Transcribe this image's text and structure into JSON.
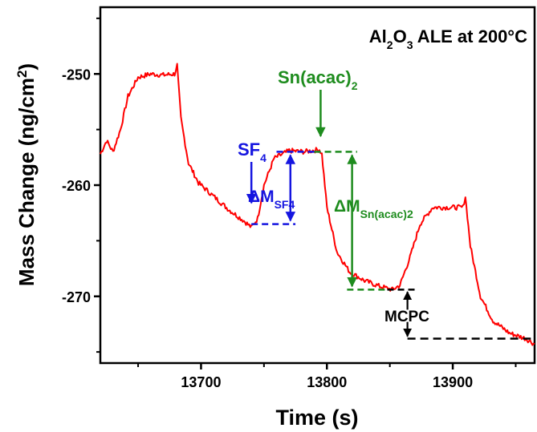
{
  "chart_data": {
    "type": "line",
    "title": "",
    "xlabel": "Time (s)",
    "ylabel_main": "Mass Change (ng/cm",
    "ylabel_sup": "2",
    "ylabel_close": ")",
    "xlim": [
      13620,
      13965
    ],
    "ylim": [
      -276,
      -244
    ],
    "xticks": [
      13700,
      13800,
      13900
    ],
    "xtick_labels": [
      "13700",
      "13800",
      "13900"
    ],
    "yticks": [
      -250,
      -260,
      -270
    ],
    "ytick_labels": [
      "-250",
      "-260",
      "-270"
    ],
    "grid": false,
    "legend": "none",
    "line_color": "#ff0000",
    "series": [
      {
        "values_xy": [
          [
            13620,
            -257.2
          ],
          [
            13625,
            -256.0
          ],
          [
            13630,
            -257.0
          ],
          [
            13636,
            -255.0
          ],
          [
            13642,
            -252.0
          ],
          [
            13650,
            -250.3
          ],
          [
            13660,
            -250.0
          ],
          [
            13670,
            -250.1
          ],
          [
            13679,
            -250.0
          ],
          [
            13681,
            -249.2
          ],
          [
            13684,
            -254.0
          ],
          [
            13690,
            -258.0
          ],
          [
            13698,
            -259.8
          ],
          [
            13710,
            -261.0
          ],
          [
            13722,
            -262.2
          ],
          [
            13734,
            -263.2
          ],
          [
            13740,
            -263.8
          ],
          [
            13745,
            -263.0
          ],
          [
            13750,
            -260.0
          ],
          [
            13758,
            -257.6
          ],
          [
            13770,
            -256.9
          ],
          [
            13782,
            -257.0
          ],
          [
            13794,
            -256.8
          ],
          [
            13796,
            -257.2
          ],
          [
            13800,
            -262.0
          ],
          [
            13808,
            -266.0
          ],
          [
            13818,
            -267.8
          ],
          [
            13830,
            -268.6
          ],
          [
            13842,
            -269.1
          ],
          [
            13852,
            -269.4
          ],
          [
            13858,
            -269.0
          ],
          [
            13866,
            -266.5
          ],
          [
            13874,
            -263.5
          ],
          [
            13884,
            -262.0
          ],
          [
            13896,
            -262.0
          ],
          [
            13908,
            -262.0
          ],
          [
            13910,
            -261.0
          ],
          [
            13914,
            -265.5
          ],
          [
            13922,
            -270.0
          ],
          [
            13932,
            -272.2
          ],
          [
            13945,
            -273.3
          ],
          [
            13958,
            -273.8
          ],
          [
            13965,
            -274.3
          ]
        ]
      }
    ],
    "annotations": {
      "title_al": "Al",
      "title_sub2": "2",
      "title_o": "O",
      "title_sub3": "3",
      "title_rest": " ALE at 200°C",
      "sf4_main": "SF",
      "sf4_sub": "4",
      "snacac_main": "Sn(acac)",
      "snacac_sub": "2",
      "dm_sf4_main": "ΔM",
      "dm_sf4_sub": "SF4",
      "dm_sn_main": "ΔM",
      "dm_sn_sub": "Sn(acac)2",
      "mcpc": "MCPC"
    },
    "annotation_colors": {
      "sf4": "#1515e0",
      "snacac": "#1e8c1e",
      "mcpc": "#000000"
    }
  }
}
